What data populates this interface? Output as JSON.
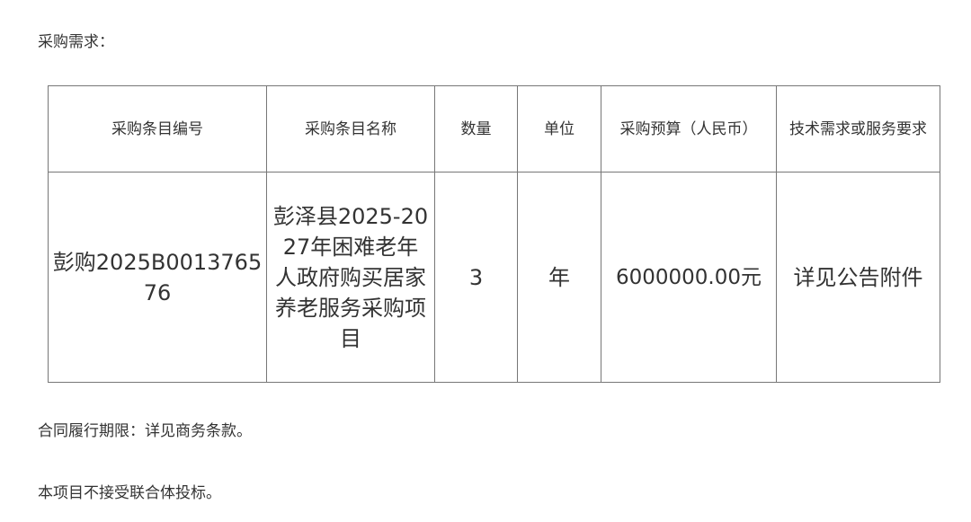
{
  "heading": "采购需求：",
  "table": {
    "headers": [
      "采购条目编号",
      "采购条目名称",
      "数量",
      "单位",
      "采购预算（人民币）",
      "技术需求或服务要求"
    ],
    "rows": [
      [
        "彭购2025B001376576",
        "彭泽县2025-2027年困难老年人政府购买居家养老服务采购项目",
        "3",
        "年",
        "6000000.00元",
        "详见公告附件"
      ]
    ]
  },
  "contract_period": "合同履行期限：详见商务条款。",
  "consortium_note": "本项目不接受联合体投标。"
}
